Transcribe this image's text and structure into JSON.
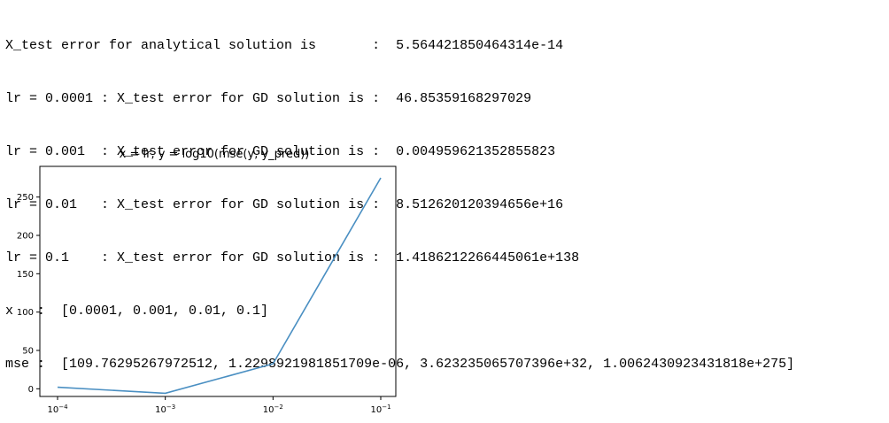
{
  "console": {
    "lines": [
      "X_test error for analytical solution is       :  5.564421850464314e-14",
      "lr = 0.0001 : X_test error for GD solution is :  46.85359168297029",
      "lr = 0.001  : X_test error for GD solution is :  0.004959621352855823",
      "lr = 0.01   : X_test error for GD solution is :  8.512620120394656e+16",
      "lr = 0.1    : X_test error for GD solution is :  1.4186212266445061e+138",
      "x   :  [0.0001, 0.001, 0.01, 0.1]",
      "mse :  [109.76295267972512, 1.2298921981851709e-06, 3.623235065707396e+32, 1.0062430923431818e+275]"
    ]
  },
  "chart_data": {
    "type": "line",
    "title": "x = lr, y = log10(mse(y, y_pred))",
    "xscale": "log",
    "x": [
      0.0001,
      0.001,
      0.01,
      0.1
    ],
    "series": [
      {
        "values": [
          2.04,
          -5.91,
          32.56,
          275.0
        ],
        "color": "#4a8fc2"
      }
    ],
    "xticks": [
      {
        "value": 0.0001,
        "base": "10",
        "exp": "−4"
      },
      {
        "value": 0.001,
        "base": "10",
        "exp": "−3"
      },
      {
        "value": 0.01,
        "base": "10",
        "exp": "−2"
      },
      {
        "value": 0.1,
        "base": "10",
        "exp": "−1"
      }
    ],
    "yticks": [
      0,
      50,
      100,
      150,
      200,
      250
    ],
    "ylim": [
      -10,
      290
    ],
    "grid": false
  }
}
